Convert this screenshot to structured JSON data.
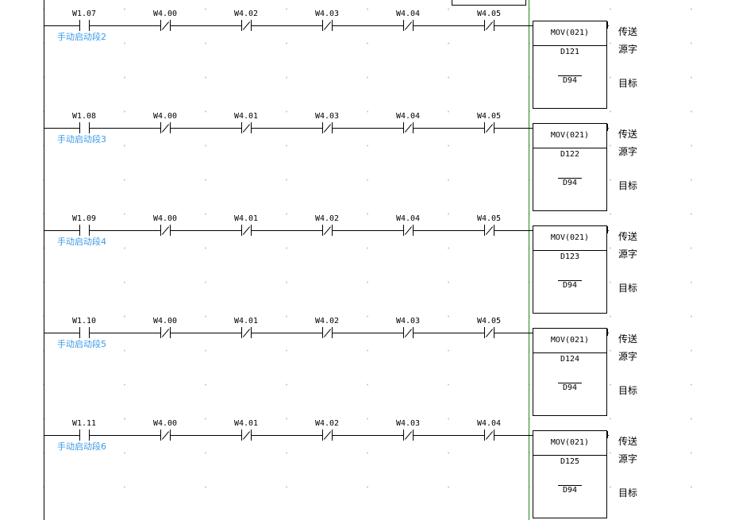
{
  "rungs": [
    {
      "input": "W1.07",
      "comment": "手动启动段2",
      "contacts": [
        "W4.00",
        "W4.02",
        "W4.03",
        "W4.04",
        "W4.05"
      ],
      "instruction": "MOV(021)",
      "source": "D121",
      "dest": "D94"
    },
    {
      "input": "W1.08",
      "comment": "手动启动段3",
      "contacts": [
        "W4.00",
        "W4.01",
        "W4.03",
        "W4.04",
        "W4.05"
      ],
      "instruction": "MOV(021)",
      "source": "D122",
      "dest": "D94"
    },
    {
      "input": "W1.09",
      "comment": "手动启动段4",
      "contacts": [
        "W4.00",
        "W4.01",
        "W4.02",
        "W4.04",
        "W4.05"
      ],
      "instruction": "MOV(021)",
      "source": "D123",
      "dest": "D94"
    },
    {
      "input": "W1.10",
      "comment": "手动启动段5",
      "contacts": [
        "W4.00",
        "W4.01",
        "W4.02",
        "W4.03",
        "W4.05"
      ],
      "instruction": "MOV(021)",
      "source": "D124",
      "dest": "D94"
    },
    {
      "input": "W1.11",
      "comment": "手动启动段6",
      "contacts": [
        "W4.00",
        "W4.01",
        "W4.02",
        "W4.03",
        "W4.04"
      ],
      "instruction": "MOV(021)",
      "source": "D125",
      "dest": "D94"
    }
  ],
  "operand_labels": {
    "instruction": "传送",
    "source": "源字",
    "dest": "目标"
  },
  "colors": {
    "comment": "#3a9ae8",
    "right_rail": "#1a8a1a",
    "grid_dot": "#c8c8c8"
  }
}
